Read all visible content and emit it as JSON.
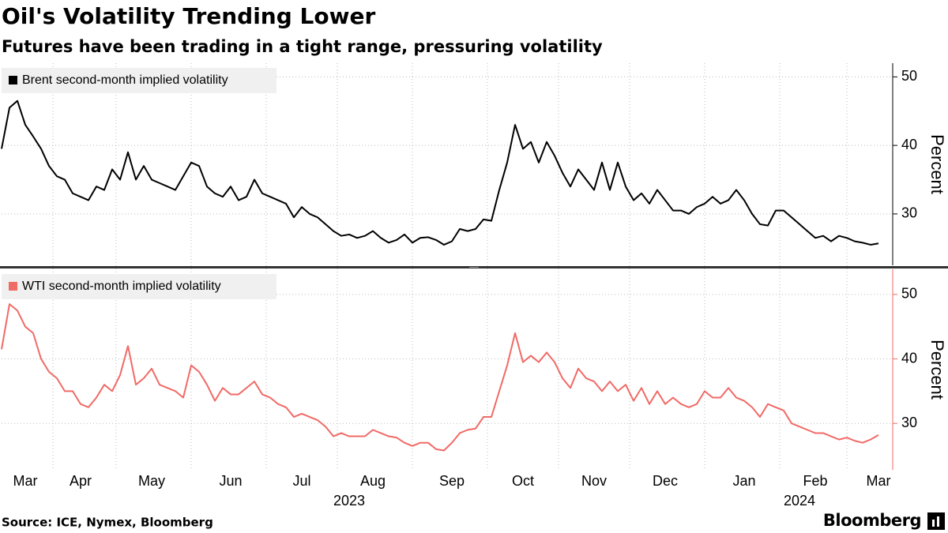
{
  "title": "Oil's Volatility Trending Lower",
  "subtitle": "Futures have been trading in a tight range, pressuring volatility",
  "source": "Source: ICE, Nymex, Bloomberg",
  "brand": "Bloomberg",
  "chart_data": [
    {
      "type": "line",
      "ylabel": "Percent",
      "ylim": [
        22.5,
        52
      ],
      "yticks": [
        30,
        40,
        50
      ],
      "grid": true,
      "axis_color": "#000000",
      "series": [
        {
          "name": "Brent second-month implied volatility",
          "color": "#000000",
          "values": [
            39.5,
            45.5,
            46.5,
            43,
            41.3,
            39.5,
            37,
            35.5,
            35,
            33,
            32.5,
            32,
            34,
            33.5,
            36.5,
            35,
            39,
            35,
            37,
            35,
            34.5,
            34,
            33.5,
            35.5,
            37.5,
            37,
            34,
            33,
            32.5,
            34,
            32,
            32.5,
            35,
            33,
            32.5,
            32,
            31.5,
            29.5,
            31,
            30,
            29.5,
            28.5,
            27.5,
            26.8,
            27,
            26.5,
            26.8,
            27.5,
            26.5,
            25.8,
            26.2,
            27,
            25.8,
            26.5,
            26.6,
            26.2,
            25.5,
            26,
            27.8,
            27.5,
            27.8,
            29.2,
            29,
            33.5,
            37.5,
            43,
            39.5,
            40.5,
            37.5,
            40.5,
            38.5,
            36,
            34,
            36.5,
            35,
            33.5,
            37.5,
            33.5,
            37.5,
            34,
            32,
            33,
            31.5,
            33.5,
            32,
            30.5,
            30.5,
            30,
            31,
            31.5,
            32.5,
            31.5,
            32,
            33.5,
            32,
            30,
            28.5,
            28.3,
            30.5,
            30.5,
            29.5,
            28.5,
            27.5,
            26.5,
            26.8,
            26,
            26.8,
            26.5,
            26,
            25.8,
            25.5,
            25.7
          ]
        }
      ]
    },
    {
      "type": "line",
      "ylabel": "Percent",
      "ylim": [
        22.8,
        53.9
      ],
      "yticks": [
        30,
        40,
        50
      ],
      "grid": true,
      "axis_color": "#f06a66",
      "series": [
        {
          "name": "WTI second-month implied volatility",
          "color": "#f06a66",
          "values": [
            41.5,
            48.5,
            47.5,
            45,
            44,
            40,
            38,
            37,
            35,
            35,
            33,
            32.5,
            34,
            36,
            35,
            37.5,
            42,
            36,
            37,
            38.5,
            36,
            35.5,
            35,
            34,
            39,
            38,
            36,
            33.5,
            35.5,
            34.5,
            34.5,
            35.5,
            36.5,
            34.5,
            34,
            33,
            32.5,
            31,
            31.5,
            31,
            30.5,
            29.5,
            28,
            28.5,
            28,
            28,
            28,
            29,
            28.5,
            28,
            27.8,
            27,
            26.5,
            27,
            27,
            26,
            25.8,
            27,
            28.5,
            29,
            29.2,
            31,
            31,
            35,
            39,
            44,
            39.5,
            40.5,
            39.5,
            41,
            39.5,
            37,
            35.5,
            38.5,
            37,
            36.5,
            35,
            36.5,
            35,
            36,
            33.5,
            35.5,
            33,
            35,
            33,
            34,
            33,
            32.5,
            33,
            35,
            34,
            34,
            35.5,
            34,
            33.5,
            32.5,
            31,
            33,
            32.5,
            32,
            30,
            29.5,
            29,
            28.5,
            28.5,
            28,
            27.5,
            27.8,
            27.3,
            27,
            27.5,
            28.2
          ]
        }
      ],
      "categories": [
        null,
        null,
        null,
        "Mar",
        null,
        null,
        null,
        null,
        null,
        null,
        "Apr",
        null,
        null,
        null,
        null,
        null,
        null,
        null,
        null,
        "May",
        null,
        null,
        null,
        null,
        null,
        null,
        null,
        null,
        null,
        "Jun",
        null,
        null,
        null,
        null,
        null,
        null,
        null,
        null,
        "Jul",
        null,
        null,
        null,
        null,
        null,
        null,
        null,
        null,
        "Aug",
        null,
        null,
        null,
        null,
        null,
        null,
        null,
        null,
        null,
        "Sep",
        null,
        null,
        null,
        null,
        null,
        null,
        null,
        null,
        "Oct",
        null,
        null,
        null,
        null,
        null,
        null,
        null,
        null,
        "Nov",
        null,
        null,
        null,
        null,
        null,
        null,
        null,
        null,
        "Dec",
        null,
        null,
        null,
        null,
        null,
        null,
        null,
        null,
        null,
        "Jan",
        null,
        null,
        null,
        null,
        null,
        null,
        null,
        null,
        "Feb",
        null,
        null,
        null,
        null,
        null,
        null,
        null,
        "Mar"
      ],
      "year_categories": [
        null,
        null,
        null,
        null,
        null,
        null,
        null,
        null,
        null,
        null,
        null,
        null,
        null,
        null,
        null,
        null,
        null,
        null,
        null,
        null,
        null,
        null,
        null,
        null,
        null,
        null,
        null,
        null,
        null,
        null,
        null,
        null,
        null,
        null,
        null,
        null,
        null,
        null,
        null,
        null,
        null,
        null,
        null,
        null,
        "2023",
        null,
        null,
        null,
        null,
        null,
        null,
        null,
        null,
        null,
        null,
        null,
        null,
        null,
        null,
        null,
        null,
        null,
        null,
        null,
        null,
        null,
        null,
        null,
        null,
        null,
        null,
        null,
        null,
        null,
        null,
        null,
        null,
        null,
        null,
        null,
        null,
        null,
        null,
        null,
        null,
        null,
        null,
        null,
        null,
        null,
        null,
        null,
        null,
        null,
        null,
        null,
        null,
        null,
        null,
        null,
        null,
        "2024",
        null,
        null,
        null,
        null,
        null,
        null,
        null,
        null,
        null,
        null
      ]
    }
  ]
}
